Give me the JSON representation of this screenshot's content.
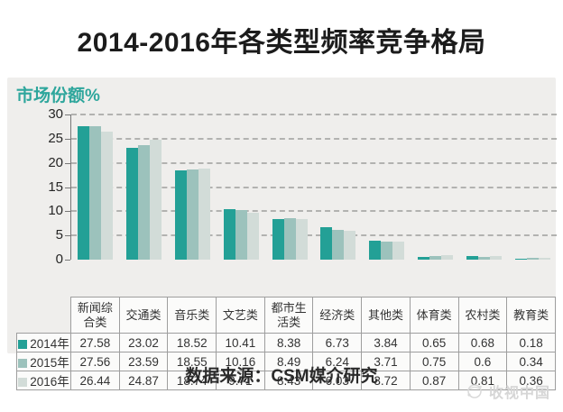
{
  "header": {
    "title": "2014-2016年各类型频率竞争格局"
  },
  "footer": {
    "source_text": "数据来源：CSM媒介研究"
  },
  "watermark": {
    "icon": "globe-logo-icon",
    "text": "收视中国"
  },
  "colors": {
    "accent_teal": "#2ea69c",
    "panel_background": "#efeeec",
    "gridline": "#b2b2b0",
    "series_2014": "#23a096",
    "series_2015": "#9cc2bc",
    "series_2016": "#d2dcd8"
  },
  "chart_data": {
    "type": "bar",
    "title": "2014-2016年各类型频率竞争格局",
    "ylabel": "市场份额%",
    "xlabel": "",
    "ylim": [
      0,
      30
    ],
    "yticks": [
      0,
      5,
      10,
      15,
      20,
      25,
      30
    ],
    "grid": "horizontal-dashed",
    "legend_position": "table-left",
    "categories": [
      "新闻综合类",
      "交通类",
      "音乐类",
      "文艺类",
      "都市生活类",
      "经济类",
      "其他类",
      "体育类",
      "农村类",
      "教育类"
    ],
    "series": [
      {
        "name": "2014年",
        "color": "#23a096",
        "values": [
          27.58,
          23.02,
          18.52,
          10.41,
          8.38,
          6.73,
          3.84,
          0.65,
          0.68,
          0.18
        ]
      },
      {
        "name": "2015年",
        "color": "#9cc2bc",
        "values": [
          27.56,
          23.59,
          18.55,
          10.16,
          8.49,
          6.24,
          3.71,
          0.75,
          0.6,
          0.34
        ]
      },
      {
        "name": "2016年",
        "color": "#d2dcd8",
        "values": [
          26.44,
          24.87,
          18.74,
          9.71,
          8.43,
          6.03,
          3.72,
          0.87,
          0.81,
          0.36
        ]
      }
    ]
  }
}
